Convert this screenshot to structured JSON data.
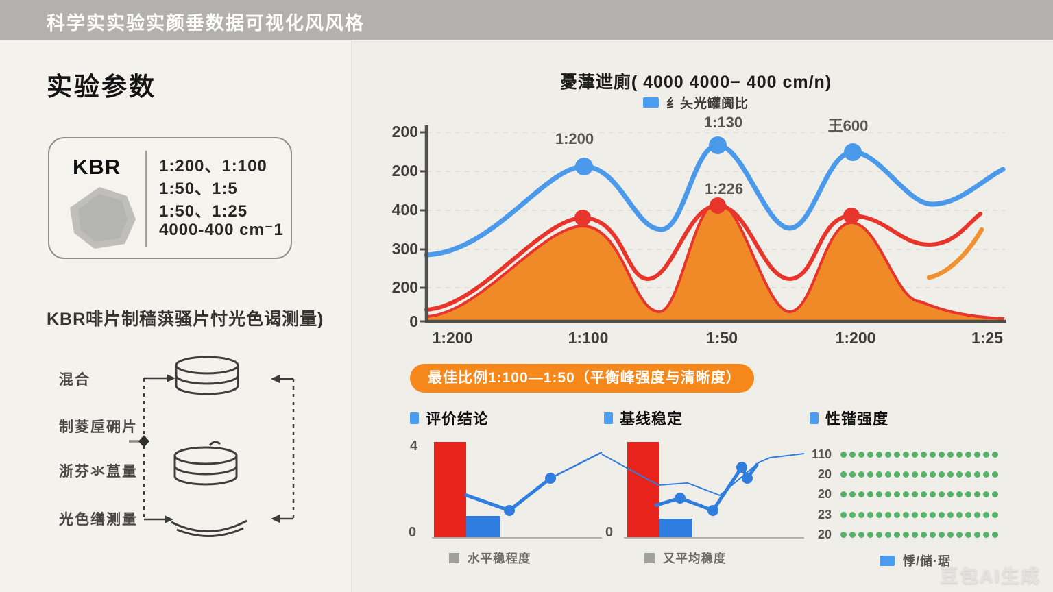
{
  "header": {
    "title": "科学实实验实颜垂数据可视化风风格"
  },
  "left_panel": {
    "title": "实验参数",
    "param_box": {
      "material": "KBR",
      "lines": [
        "1:200、1:100",
        "1:50、1:5",
        "1:50、1:25",
        "4000-400 cm⁻1"
      ]
    },
    "caption": "KBR啡片制穑葓骚片忖光色谒测量)",
    "flow_steps": [
      "混合",
      "制菱垕砽片",
      "浙芬氺蒀量",
      "光色缮测量"
    ]
  },
  "banner": {
    "text": "最佳比例1:100—1:50（平衡峰强度与清晰度）"
  },
  "sections": [
    "评价结论",
    "基线稳定",
    "性锴强度"
  ],
  "watermark": "豆包AI生成",
  "colors": {
    "header_bar": "#b2b1ad",
    "blue": "#4a99ea",
    "red": "#e8352b",
    "orange_fill": "#f08a28",
    "banner_orange": "#f5871b",
    "green_dot": "#55b268"
  },
  "chart_data": [
    {
      "type": "line",
      "title": "憂葏迣廁( 4000 4000− 400 cm/n)",
      "legend_label": "纟夨光罐阓比",
      "legend_position": "top-center",
      "grid": "dashed-horizontal",
      "y_ticks": [
        "200",
        "200",
        "400",
        "300",
        "200",
        "0"
      ],
      "x_ticks": [
        "1:200",
        "1:100",
        "1:50",
        "1:200",
        "1:25"
      ],
      "peak_labels": {
        "p1": "1:200",
        "p2": "1:130",
        "p3": "王600",
        "red": "1:226"
      },
      "series": [
        {
          "name": "blue line with peak markers",
          "color": "#4a99ea",
          "approx_values_at_x_ticks": [
            170,
            390,
            450,
            430,
            385
          ],
          "peaks_at": [
            "1:100",
            "1:50",
            "1:200(2nd)"
          ]
        },
        {
          "name": "red line with peak markers",
          "color": "#e8352b",
          "approx_values_at_x_ticks": [
            30,
            265,
            295,
            268,
            275
          ]
        },
        {
          "name": "orange filled area (red outline)",
          "color": "#f08a28",
          "approx_values_at_x_ticks": [
            15,
            245,
            300,
            255,
            5
          ]
        },
        {
          "name": "short orange rising curve at right",
          "color": "#f0922f",
          "approx_values": [
            110,
            230
          ]
        }
      ],
      "note": "axis and data labels are AI-garbled; values estimated from pixels, baseline 0 to ~500"
    },
    {
      "type": "bar+line",
      "title": "评价结论",
      "y_top_label": "4",
      "y_bottom_label": "0",
      "legend": "水平稳程度",
      "bars": [
        {
          "color": "#e8231b",
          "value": 4.0
        },
        {
          "color": "#2f7de0",
          "value": 0.9
        }
      ],
      "line_values": [
        1.8,
        1.15,
        2.5,
        3.6
      ]
    },
    {
      "type": "bar+line",
      "title": "基线稳定",
      "y_bottom_label": "0",
      "legend": "又平均稳度",
      "bars": [
        {
          "color": "#e8231b",
          "value": 4.0
        },
        {
          "color": "#2f7de0",
          "value": 0.8
        }
      ],
      "line_thick_values": [
        1.35,
        1.65,
        1.15,
        1.75,
        2.9,
        2.5,
        3.1
      ],
      "line_thin_values": [
        3.4,
        2.2,
        2.3,
        1.7,
        3.0,
        3.2,
        3.3
      ]
    },
    {
      "type": "dot-grid",
      "title": "性锴强度",
      "dot_color": "#55b268",
      "legend": "悸/储·琚",
      "rows": [
        {
          "label": "110",
          "dots": 18
        },
        {
          "label": "20",
          "dots": 18
        },
        {
          "label": "20",
          "dots": 18
        },
        {
          "label": "23",
          "dots": 18
        },
        {
          "label": "20",
          "dots": 18
        }
      ]
    }
  ]
}
